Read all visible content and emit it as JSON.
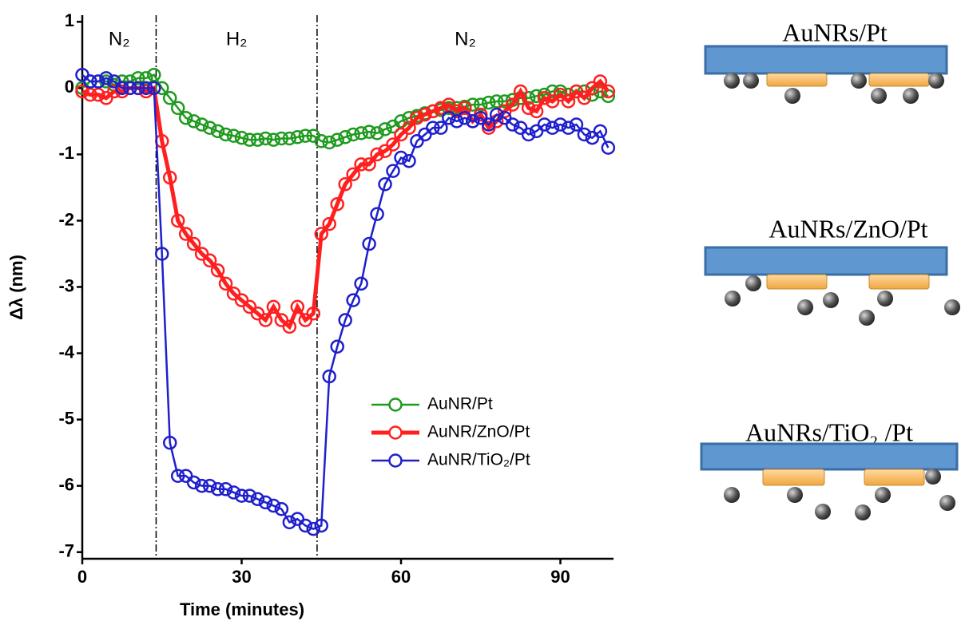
{
  "chart_data": {
    "type": "line",
    "xlabel": "Time (minutes)",
    "ylabel": "Δλ (nm)",
    "x": [
      0,
      1.5,
      3,
      4.5,
      6,
      7.5,
      9,
      10.5,
      12,
      13.5,
      15,
      16.5,
      18,
      19.5,
      21,
      22.5,
      24,
      25.5,
      27,
      28.5,
      30,
      31.5,
      33,
      34.5,
      36,
      37.5,
      39,
      40.5,
      42,
      43.5,
      45,
      46.5,
      48,
      49.5,
      51,
      52.5,
      54,
      55.5,
      57,
      58.5,
      60,
      61.5,
      63,
      64.5,
      66,
      67.5,
      69,
      70.5,
      72,
      73.5,
      75,
      76.5,
      78,
      79.5,
      81,
      82.5,
      84,
      85.5,
      87,
      88.5,
      90,
      91.5,
      93,
      94.5,
      96,
      97.5,
      99
    ],
    "series": [
      {
        "name": "AuNR/Pt",
        "color": "#1f9a1f",
        "values": [
          0,
          0.1,
          0.1,
          0.1,
          0.05,
          0.1,
          0.1,
          0.15,
          0.15,
          0.2,
          0,
          -0.15,
          -0.3,
          -0.45,
          -0.5,
          -0.55,
          -0.6,
          -0.65,
          -0.7,
          -0.72,
          -0.75,
          -0.78,
          -0.78,
          -0.76,
          -0.78,
          -0.76,
          -0.76,
          -0.74,
          -0.72,
          -0.72,
          -0.8,
          -0.82,
          -0.78,
          -0.74,
          -0.7,
          -0.68,
          -0.66,
          -0.68,
          -0.62,
          -0.58,
          -0.5,
          -0.45,
          -0.42,
          -0.38,
          -0.35,
          -0.33,
          -0.3,
          -0.3,
          -0.28,
          -0.25,
          -0.25,
          -0.22,
          -0.2,
          -0.2,
          -0.18,
          -0.15,
          -0.15,
          -0.12,
          -0.1,
          -0.05,
          -0.05,
          -0.1,
          -0.05,
          -0.05,
          -0.1,
          -0.05,
          -0.12
        ]
      },
      {
        "name": "AuNR/ZnO/Pt",
        "color": "#ff1f1f",
        "values": [
          -0.05,
          -0.1,
          -0.1,
          -0.15,
          -0.05,
          -0.05,
          0,
          0,
          -0.05,
          0,
          -0.8,
          -1.35,
          -2,
          -2.2,
          -2.35,
          -2.5,
          -2.6,
          -2.75,
          -2.95,
          -3.1,
          -3.2,
          -3.3,
          -3.4,
          -3.5,
          -3.3,
          -3.5,
          -3.6,
          -3.3,
          -3.5,
          -3.4,
          -2.2,
          -2.05,
          -1.75,
          -1.45,
          -1.3,
          -1.15,
          -1.15,
          -1,
          -0.95,
          -0.85,
          -0.7,
          -0.6,
          -0.45,
          -0.4,
          -0.35,
          -0.3,
          -0.25,
          -0.35,
          -0.3,
          -0.5,
          -0.4,
          -0.6,
          -0.5,
          -0.35,
          -0.25,
          -0.05,
          -0.3,
          -0.35,
          -0.15,
          -0.2,
          -0.1,
          -0.2,
          -0.05,
          -0.15,
          0,
          0.1,
          -0.05
        ]
      },
      {
        "name": "AuNR/TiO₂/Pt",
        "color": "#1f1fcc",
        "values": [
          0.2,
          0.1,
          0.1,
          0.15,
          0.1,
          0,
          0,
          0,
          0,
          0,
          -2.5,
          -5.35,
          -5.85,
          -5.85,
          -5.95,
          -6,
          -6,
          -6.05,
          -6.05,
          -6.1,
          -6.15,
          -6.15,
          -6.2,
          -6.25,
          -6.3,
          -6.35,
          -6.55,
          -6.5,
          -6.6,
          -6.65,
          -6.6,
          -4.35,
          -3.9,
          -3.5,
          -3.2,
          -2.95,
          -2.35,
          -1.9,
          -1.45,
          -1.25,
          -1.05,
          -1.1,
          -0.8,
          -0.7,
          -0.6,
          -0.6,
          -0.45,
          -0.5,
          -0.45,
          -0.5,
          -0.45,
          -0.55,
          -0.4,
          -0.45,
          -0.55,
          -0.6,
          -0.7,
          -0.65,
          -0.55,
          -0.6,
          -0.55,
          -0.6,
          -0.55,
          -0.7,
          -0.75,
          -0.65,
          -0.9
        ]
      }
    ],
    "xlim": [
      0,
      100
    ],
    "xticks": [
      0,
      30,
      60,
      90
    ],
    "ylim": [
      -7.1,
      1.1
    ],
    "yticks": [
      -7,
      -6,
      -5,
      -4,
      -3,
      -2,
      -1,
      0,
      1
    ],
    "vlines": [
      13.9,
      44.2
    ],
    "region_labels": [
      "N₂",
      "H₂",
      "N₂"
    ],
    "legend": "lower right"
  },
  "schematics": [
    "AuNRs/Pt",
    "AuNRs/ZnO/Pt",
    "AuNRs/TiO₂ /Pt"
  ]
}
